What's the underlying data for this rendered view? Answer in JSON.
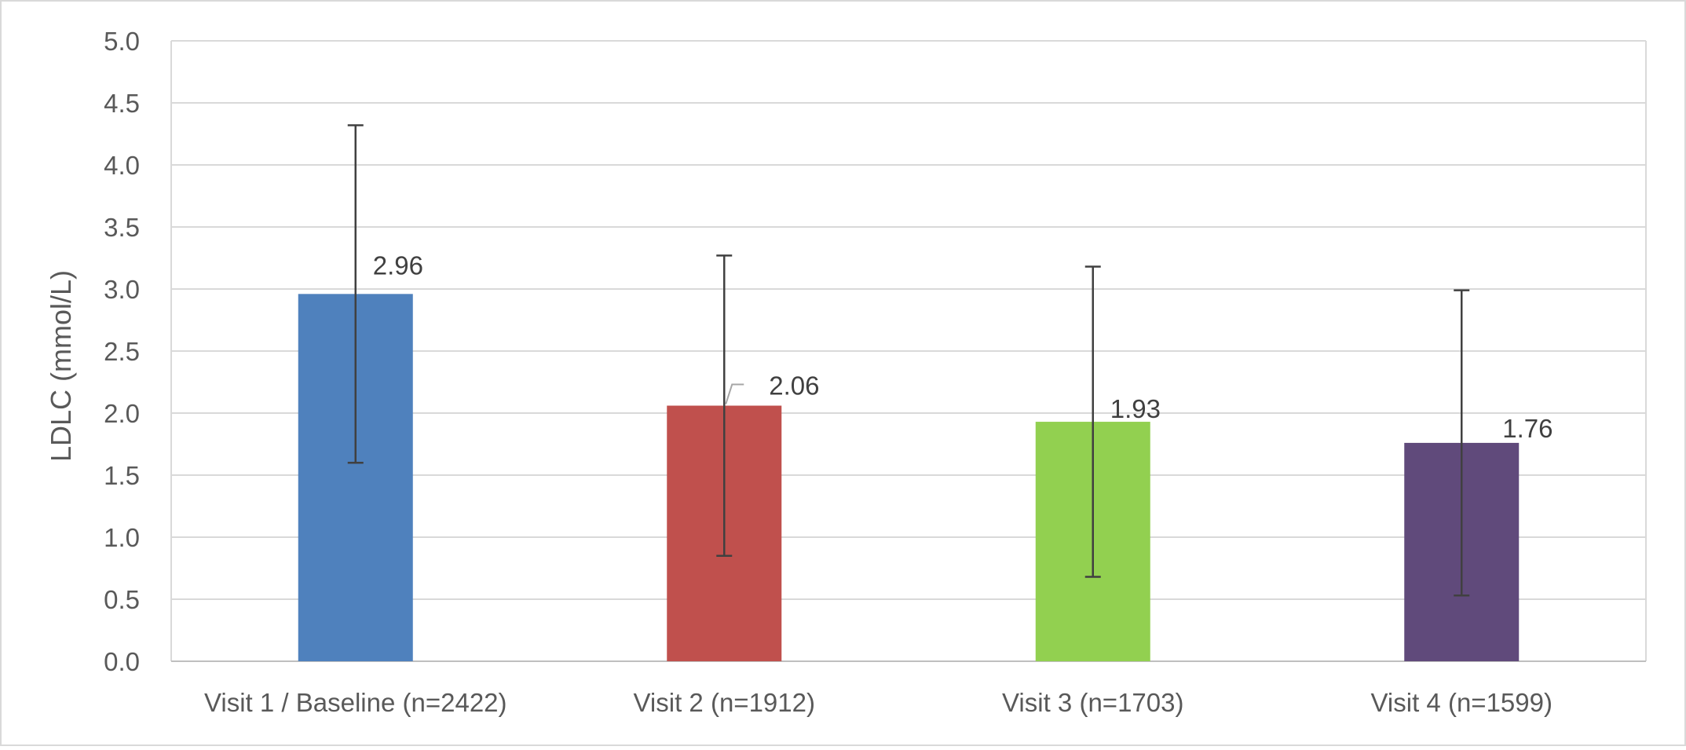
{
  "chart_data": {
    "type": "bar",
    "title": "",
    "xlabel": "",
    "ylabel": "LDLC (mmol/L)",
    "ylim": [
      0,
      5
    ],
    "yticks": [
      "0.0",
      "0.5",
      "1.0",
      "1.5",
      "2.0",
      "2.5",
      "3.0",
      "3.5",
      "4.0",
      "4.5",
      "5.0"
    ],
    "grid": true,
    "legend": "none",
    "categories": [
      "Visit 1 / Baseline (n=2422)",
      "Visit 2 (n=1912)",
      "Visit 3 (n=1703)",
      "Visit 4 (n=1599)"
    ],
    "values": [
      2.96,
      2.06,
      1.93,
      1.76
    ],
    "data_labels": [
      "2.96",
      "2.06",
      "1.93",
      "1.76"
    ],
    "error_bars": [
      {
        "low": 1.6,
        "high": 4.32
      },
      {
        "low": 0.85,
        "high": 3.27
      },
      {
        "low": 0.68,
        "high": 3.18
      },
      {
        "low": 0.53,
        "high": 2.99
      }
    ],
    "colors": [
      "#4F81BD",
      "#C0504D",
      "#92D050",
      "#604A7B"
    ]
  }
}
